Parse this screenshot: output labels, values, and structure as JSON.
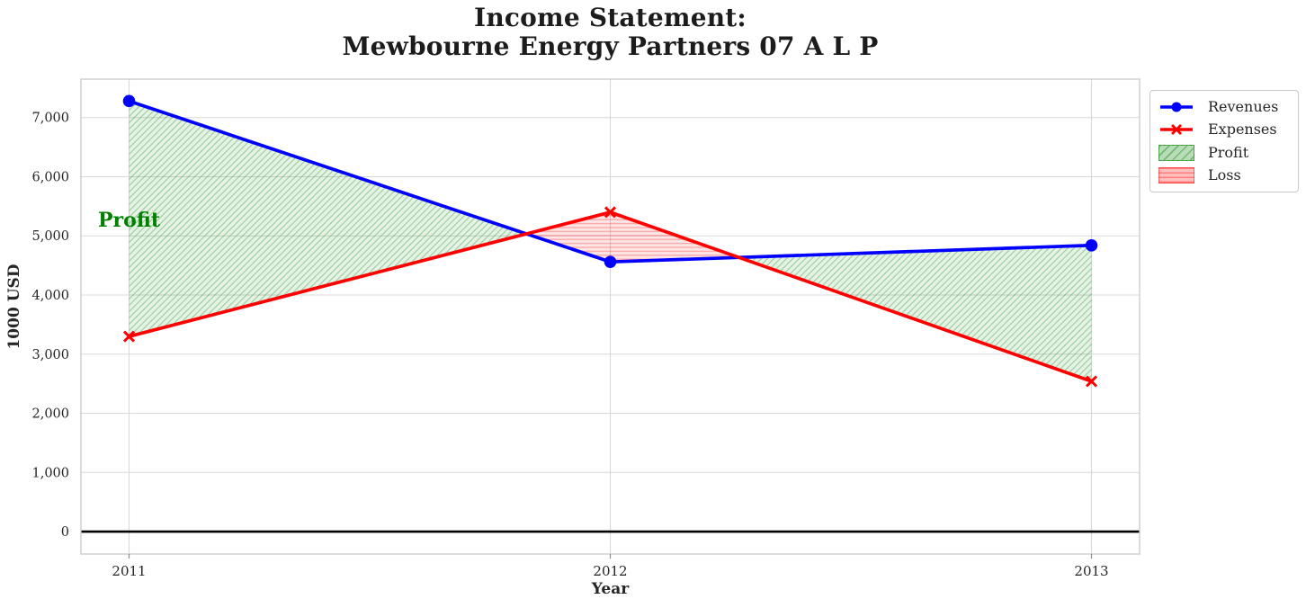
{
  "title": {
    "line1": "Income Statement:",
    "line2": "Mewbourne Energy Partners 07 A L P"
  },
  "legend": {
    "items": [
      {
        "label": "Revenues",
        "swatch": "blue-line-circle-marker"
      },
      {
        "label": "Expenses",
        "swatch": "red-line-x-marker"
      },
      {
        "label": "Profit",
        "swatch": "green-diagonal-hatch-patch"
      },
      {
        "label": "Loss",
        "swatch": "red-horizontal-hatch-patch"
      }
    ]
  },
  "colors": {
    "revenues_line": "#0000ff",
    "expenses_line": "#ff0000",
    "profit_hatch": "#008000",
    "loss_hatch": "#ff0000",
    "annotation_text": "#008000",
    "grid": "#d8d8d8",
    "frame": "#c9c9c9",
    "tick_text": "#262626",
    "zero_line": "#000000"
  },
  "chart_data": {
    "type": "line",
    "x": [
      2011,
      2012,
      2013
    ],
    "series": [
      {
        "name": "Revenues",
        "values": [
          7280,
          4560,
          4840
        ],
        "color": "#0000ff",
        "marker": "circle",
        "linewidth": 3.7
      },
      {
        "name": "Expenses",
        "values": [
          3300,
          5400,
          2540
        ],
        "color": "#ff0000",
        "marker": "x",
        "linewidth": 3.7
      }
    ],
    "fill_between": [
      {
        "name": "Profit",
        "condition": "revenues >= expenses",
        "color": "#008000",
        "hatch": "//"
      },
      {
        "name": "Loss",
        "condition": "expenses > revenues",
        "color": "#ff0000",
        "hatch": "--"
      }
    ],
    "title": "Income Statement: Mewbourne Energy Partners 07 A L P",
    "xlabel": "Year",
    "ylabel": "1000 USD",
    "xlim": [
      2010.9,
      2013.1
    ],
    "ylim": [
      -380,
      7650
    ],
    "xticks": [
      2011,
      2012,
      2013
    ],
    "xtick_labels": [
      "2011",
      "2012",
      "2013"
    ],
    "yticks": [
      0,
      1000,
      2000,
      3000,
      4000,
      5000,
      6000,
      7000
    ],
    "ytick_labels": [
      "0",
      "1,000",
      "2,000",
      "3,000",
      "4,000",
      "5,000",
      "6,000",
      "7,000"
    ],
    "grid": true,
    "zero_line_y": 0,
    "legend_position": "outside-upper-right",
    "annotation": {
      "text": "Profit",
      "x": 2011,
      "y": 5260,
      "color": "#008000"
    }
  }
}
